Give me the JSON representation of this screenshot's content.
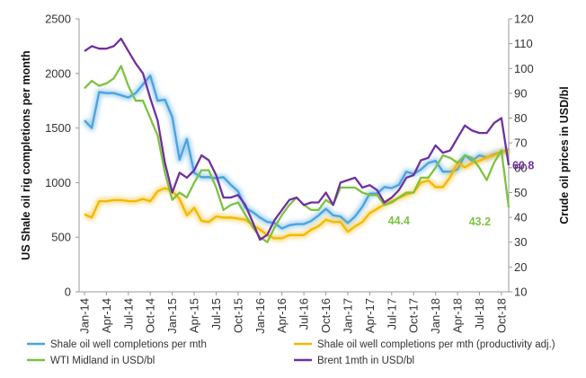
{
  "chart_data": {
    "type": "line",
    "title": "",
    "ylabel": "US Shale oil rig completions per month",
    "y2label": "Crude oil prices in USD/bl",
    "ylim": [
      0,
      2500
    ],
    "y2lim": [
      10,
      120
    ],
    "yticks": [
      "0",
      "500",
      "1000",
      "1500",
      "2000",
      "2500"
    ],
    "y2ticks": [
      "10",
      "20",
      "30",
      "40",
      "50",
      "60",
      "70",
      "80",
      "90",
      "100",
      "110",
      "120"
    ],
    "xtick_labels": [
      "Jan-14",
      "Apr-14",
      "Jul-14",
      "Oct-14",
      "Jan-15",
      "Apr-15",
      "Jul-15",
      "Oct-15",
      "Jan-16",
      "Apr-16",
      "Jul-16",
      "Oct-16",
      "Jan-17",
      "Apr-17",
      "Jul-17",
      "Oct-17",
      "Jan-18",
      "Apr-18",
      "Jul-18",
      "Oct-18"
    ],
    "x": [
      "Jan-14",
      "Feb-14",
      "Mar-14",
      "Apr-14",
      "May-14",
      "Jun-14",
      "Jul-14",
      "Aug-14",
      "Sep-14",
      "Oct-14",
      "Nov-14",
      "Dec-14",
      "Jan-15",
      "Feb-15",
      "Mar-15",
      "Apr-15",
      "May-15",
      "Jun-15",
      "Jul-15",
      "Aug-15",
      "Sep-15",
      "Oct-15",
      "Nov-15",
      "Dec-15",
      "Jan-16",
      "Feb-16",
      "Mar-16",
      "Apr-16",
      "May-16",
      "Jun-16",
      "Jul-16",
      "Aug-16",
      "Sep-16",
      "Oct-16",
      "Nov-16",
      "Dec-16",
      "Jan-17",
      "Feb-17",
      "Mar-17",
      "Apr-17",
      "May-17",
      "Jun-17",
      "Jul-17",
      "Aug-17",
      "Sep-17",
      "Oct-17",
      "Nov-17",
      "Dec-17",
      "Jan-18",
      "Feb-18",
      "Mar-18",
      "Apr-18",
      "May-18",
      "Jun-18",
      "Jul-18",
      "Aug-18",
      "Sep-18",
      "Oct-18",
      "Nov-18"
    ],
    "legend_position": "bottom",
    "grid": false,
    "series": [
      {
        "name": "Shale oil well completions per mth",
        "axis": "left",
        "color": "#4aa3df",
        "glow": true,
        "values": [
          1570,
          1500,
          1830,
          1820,
          1820,
          1800,
          1780,
          1820,
          1900,
          1980,
          1750,
          1760,
          1600,
          1210,
          1400,
          1090,
          1050,
          1050,
          1040,
          1050,
          980,
          920,
          770,
          730,
          680,
          640,
          630,
          580,
          610,
          620,
          620,
          650,
          700,
          760,
          700,
          690,
          630,
          690,
          780,
          900,
          900,
          960,
          950,
          980,
          1100,
          1080,
          1120,
          1180,
          1200,
          1100,
          1100,
          1120,
          1250,
          1200,
          1250,
          1230,
          1260,
          1280,
          1300
        ]
      },
      {
        "name": "Shale oil well completions per mth (productivity adj.)",
        "axis": "left",
        "color": "#f5b800",
        "glow": true,
        "values": [
          710,
          680,
          830,
          830,
          840,
          840,
          830,
          830,
          850,
          830,
          920,
          950,
          920,
          850,
          700,
          770,
          650,
          640,
          690,
          680,
          680,
          670,
          660,
          610,
          570,
          520,
          490,
          490,
          520,
          520,
          520,
          570,
          600,
          660,
          640,
          640,
          550,
          600,
          640,
          720,
          760,
          800,
          830,
          860,
          890,
          910,
          1000,
          1020,
          960,
          960,
          1050,
          1180,
          1140,
          1180,
          1200,
          1230,
          1250,
          1280,
          1290
        ]
      },
      {
        "name": "WTI Midland in USD/bl",
        "axis": "right",
        "color": "#7dc242",
        "values": [
          92,
          95,
          93,
          94,
          96,
          101,
          93,
          87,
          87,
          80,
          73,
          58,
          47,
          50,
          48,
          54,
          59,
          59,
          52,
          43,
          45,
          46,
          41,
          36,
          32,
          30,
          36,
          41,
          45,
          48,
          45,
          43,
          43,
          47,
          45,
          52,
          52,
          52,
          50,
          49,
          49,
          45,
          46,
          48,
          50,
          50,
          56,
          56,
          60,
          65,
          64,
          62,
          65,
          64,
          60,
          55,
          62,
          67,
          44
        ]
      },
      {
        "name": "Brent 1mth in USD/bl",
        "axis": "right",
        "color": "#7030a0",
        "values": [
          107,
          109,
          108,
          108,
          109,
          112,
          107,
          102,
          98,
          88,
          79,
          62,
          50,
          58,
          56,
          59,
          65,
          63,
          57,
          48,
          48,
          49,
          45,
          38,
          31,
          33,
          39,
          43,
          47,
          48,
          45,
          46,
          46,
          50,
          45,
          54,
          55,
          56,
          52,
          53,
          51,
          46,
          48,
          51,
          56,
          57,
          63,
          64,
          69,
          66,
          67,
          72,
          77,
          75,
          74,
          74,
          78,
          80,
          61
        ]
      }
    ],
    "annotations": [
      {
        "text": "44.4",
        "x": "Jun-17",
        "y": 44.4,
        "axis": "right",
        "color": "#7dc242"
      },
      {
        "text": "43.2",
        "x": "Sep-18",
        "y": 43.2,
        "axis": "right",
        "color": "#7dc242"
      },
      {
        "text": "60.8",
        "x": "Nov-18",
        "y": 60.8,
        "axis": "right",
        "color": "#7030a0"
      }
    ]
  }
}
